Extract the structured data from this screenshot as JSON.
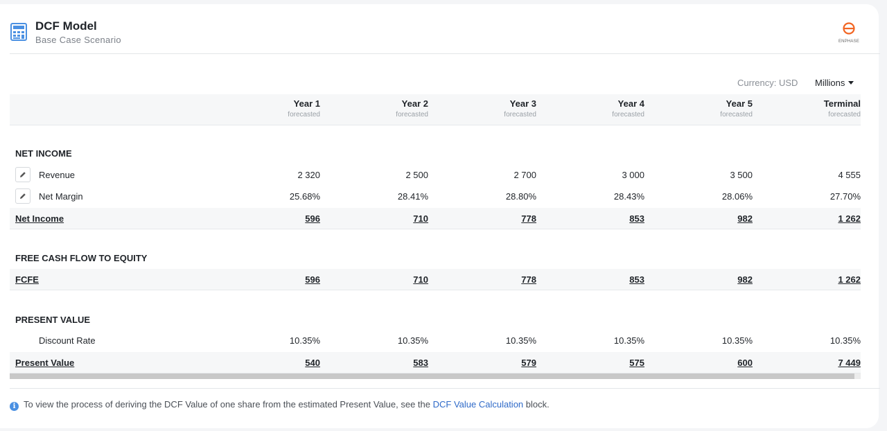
{
  "header": {
    "title": "DCF Model",
    "subtitle": "Base Case Scenario",
    "icon": "calculator-icon",
    "logo_text": "ENPHASE",
    "logo_color": "#f26522"
  },
  "controls": {
    "currency_label": "Currency: USD",
    "units_value": "Millions"
  },
  "columns": [
    {
      "label": "Year 1",
      "sub": "forecasted"
    },
    {
      "label": "Year 2",
      "sub": "forecasted"
    },
    {
      "label": "Year 3",
      "sub": "forecasted"
    },
    {
      "label": "Year 4",
      "sub": "forecasted"
    },
    {
      "label": "Year 5",
      "sub": "forecasted"
    },
    {
      "label": "Terminal",
      "sub": "forecasted"
    }
  ],
  "sections": {
    "net_income": {
      "title": "NET INCOME",
      "revenue": {
        "label": "Revenue",
        "values": [
          "2 320",
          "2 500",
          "2 700",
          "3 000",
          "3 500",
          "4 555"
        ]
      },
      "net_margin": {
        "label": "Net Margin",
        "values": [
          "25.68%",
          "28.41%",
          "28.80%",
          "28.43%",
          "28.06%",
          "27.70%"
        ]
      },
      "total": {
        "label": "Net Income",
        "values": [
          "596",
          "710",
          "778",
          "853",
          "982",
          "1 262"
        ]
      }
    },
    "fcfe": {
      "title": "FREE CASH FLOW TO EQUITY",
      "total": {
        "label": "FCFE",
        "values": [
          "596",
          "710",
          "778",
          "853",
          "982",
          "1 262"
        ]
      }
    },
    "present_value": {
      "title": "PRESENT VALUE",
      "discount_rate": {
        "label": "Discount Rate",
        "values": [
          "10.35%",
          "10.35%",
          "10.35%",
          "10.35%",
          "10.35%",
          "10.35%"
        ]
      },
      "total": {
        "label": "Present Value",
        "values": [
          "540",
          "583",
          "579",
          "575",
          "600",
          "7 449"
        ]
      }
    }
  },
  "footer": {
    "note_prefix": "To view the process of deriving the DCF Value of one share from the estimated Present Value, see the ",
    "note_link": "DCF Value Calculation",
    "note_suffix": " block."
  }
}
